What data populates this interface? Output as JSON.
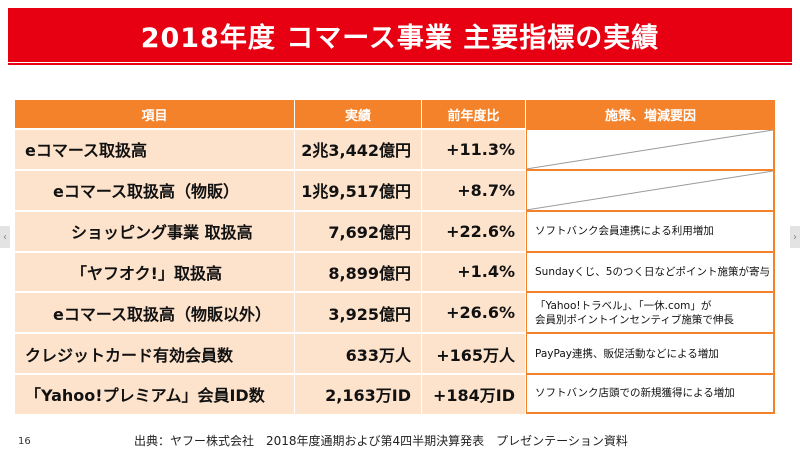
{
  "title": "2018年度 コマース事業 主要指標の実績",
  "table": {
    "headers": [
      "項目",
      "実績",
      "前年度比",
      "施策、増減要因"
    ],
    "rows": [
      {
        "item": "eコマース取扱高",
        "result": "2兆3,442億円",
        "change": "+11.3%",
        "note": ""
      },
      {
        "item": "eコマース取扱高（物販）",
        "result": "1兆9,517億円",
        "change": "+8.7%",
        "note": ""
      },
      {
        "item": "ショッピング事業 取扱高",
        "result": "7,692億円",
        "change": "+22.6%",
        "note": "ソフトバンク会員連携による利用増加"
      },
      {
        "item": "「ヤフオク!」取扱高",
        "result": "8,899億円",
        "change": "+1.4%",
        "note": "Sundayくじ、5のつく日などポイント施策が寄与"
      },
      {
        "item": "eコマース取扱高（物販以外）",
        "result": "3,925億円",
        "change": "+26.6%",
        "note_line1": "「Yahoo!トラベル」、「一休.com」が",
        "note_line2": "会員別ポイントインセンティブ施策で伸長"
      },
      {
        "item": "クレジットカード有効会員数",
        "result": "633万人",
        "change": "+165万人",
        "note": "PayPay連携、販促活動などによる増加"
      },
      {
        "item": "「Yahoo!プレミアム」会員ID数",
        "result": "2,163万ID",
        "change": "+184万ID",
        "note": "ソフトバンク店頭での新規獲得による増加"
      }
    ]
  },
  "page_number": "16",
  "source": "出典：ヤフー株式会社　2018年度通期および第4四半期決算発表　プレゼンテーション資料",
  "colors": {
    "title_bg": "#e60012",
    "header_bg": "#f4822a",
    "cell_bg": "#fde2cc"
  },
  "nav": {
    "left_icon": "chevron-left-icon",
    "right_icon": "chevron-right-icon"
  }
}
